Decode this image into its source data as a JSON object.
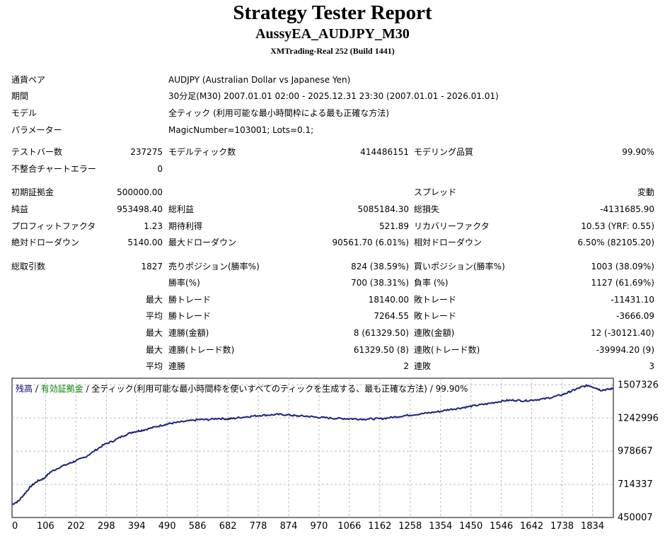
{
  "report": {
    "title": "Strategy Tester Report",
    "expert": "AussyEA_AUDJPY_M30",
    "server": "XMTrading-Real 252 (Build 1441)"
  },
  "info": [
    {
      "label": "通貨ペア",
      "value": "AUDJPY (Australian Dollar vs Japanese Yen)"
    },
    {
      "label": "期間",
      "value": "30分足(M30) 2007.01.01 02:00 - 2025.12.31 23:30 (2007.01.01 - 2026.01.01)"
    },
    {
      "label": "モデル",
      "value": "全ティック (利用可能な最小時間枠による最も正確な方法)"
    },
    {
      "label": "パラメーター",
      "value": "MagicNumber=103001; Lots=0.1;"
    }
  ],
  "stats": {
    "bars_label": "テストバー数",
    "bars": "237275",
    "ticks_label": "モデルティック数",
    "ticks": "414486151",
    "quality_label": "モデリング品質",
    "quality": "99.90%",
    "mismatch_label": "不整合チャートエラー",
    "mismatch": "0",
    "deposit_label": "初期証拠金",
    "deposit": "500000.00",
    "spread_label": "スプレッド",
    "spread": "変動",
    "net_label": "純益",
    "net": "953498.40",
    "gross_profit_label": "総利益",
    "gross_profit": "5085184.30",
    "gross_loss_label": "総損失",
    "gross_loss": "-4131685.90",
    "pf_label": "プロフィットファクタ",
    "pf": "1.23",
    "expected_label": "期待利得",
    "expected": "521.89",
    "recovery_label": "リカバリーファクタ",
    "recovery": "10.53 (YRF: 0.55)",
    "abs_dd_label": "絶対ドローダウン",
    "abs_dd": "5140.00",
    "max_dd_label": "最大ドローダウン",
    "max_dd": "90561.70 (6.01%)",
    "rel_dd_label": "相対ドローダウン",
    "rel_dd": "6.50% (82105.20)",
    "trades_label": "総取引数",
    "trades": "1827",
    "short_label": "売りポジション(勝率%)",
    "short": "824 (38.59%)",
    "long_label": "買いポジション(勝率%)",
    "long": "1003 (38.09%)",
    "win_pct_label": "勝率(%)",
    "win_pct": "700 (38.31%)",
    "loss_pct_label": "負率 (%)",
    "loss_pct": "1127 (61.69%)",
    "max_word": "最大",
    "avg_word": "平均",
    "largest_win_label": "勝トレード",
    "largest_win": "18140.00",
    "largest_loss_label": "敗トレード",
    "largest_loss": "-11431.10",
    "avg_win_label": "勝トレード",
    "avg_win": "7264.55",
    "avg_loss_label": "敗トレード",
    "avg_loss": "-3666.09",
    "max_consec_wins_money_label": "連勝(金額)",
    "max_consec_wins_money": "8 (61329.50)",
    "max_consec_losses_money_label": "連敗(金額)",
    "max_consec_losses_money": "12 (-30121.40)",
    "max_consec_wins_count_label": "連勝(トレード数)",
    "max_consec_wins_count": "61329.50 (8)",
    "max_consec_losses_count_label": "連敗(トレード数)",
    "max_consec_losses_count": "-39994.20 (9)",
    "avg_consec_wins_label": "連勝",
    "avg_consec_wins": "2",
    "avg_consec_losses_label": "連敗",
    "avg_consec_losses": "3"
  },
  "legend": {
    "balance": "残高",
    "sep1": " / ",
    "equity": "有効証拠金",
    "rest": " / 全ティック(利用可能な最小時間枠を使いすべてのティックを生成する、最も正確な方法) / 99.90%"
  },
  "colors": {
    "balance": "#000080",
    "equity": "#008000",
    "line": "#1a237e",
    "grid": "#bbbbbb"
  },
  "chart_data": {
    "type": "line",
    "title": "",
    "xlabel": "",
    "ylabel": "",
    "x_ticks": [
      "0",
      "106",
      "202",
      "298",
      "394",
      "490",
      "586",
      "682",
      "778",
      "874",
      "970",
      "1066",
      "1162",
      "1258",
      "1354",
      "1450",
      "1546",
      "1642",
      "1738",
      "1834"
    ],
    "y_ticks": [
      "1507326",
      "1242996",
      "978667",
      "714337",
      "450007"
    ],
    "xlim": [
      0,
      1900
    ],
    "ylim": [
      450007,
      1560000
    ],
    "series": [
      {
        "x": [
          0,
          20,
          40,
          60,
          80,
          100,
          120,
          150,
          180,
          200,
          230,
          260,
          290,
          320,
          350,
          380,
          400,
          420,
          450,
          480,
          500,
          530,
          560,
          590,
          620,
          650,
          680,
          700,
          730,
          760,
          790,
          820,
          850,
          880,
          900,
          930,
          960,
          990,
          1020,
          1050,
          1080,
          1110,
          1140,
          1170,
          1200,
          1230,
          1260,
          1290,
          1320,
          1350,
          1380,
          1410,
          1440,
          1470,
          1500,
          1530,
          1560,
          1590,
          1620,
          1650,
          1680,
          1710,
          1740,
          1760,
          1780,
          1800,
          1820,
          1840,
          1860,
          1880,
          1900
        ],
        "values": [
          555000,
          580000,
          640000,
          700000,
          740000,
          760000,
          810000,
          850000,
          880000,
          900000,
          930000,
          980000,
          1030000,
          1060000,
          1100000,
          1130000,
          1140000,
          1150000,
          1170000,
          1190000,
          1200000,
          1210000,
          1220000,
          1230000,
          1230000,
          1240000,
          1235000,
          1240000,
          1250000,
          1258000,
          1265000,
          1268000,
          1272000,
          1265000,
          1260000,
          1258000,
          1250000,
          1245000,
          1240000,
          1238000,
          1236000,
          1234000,
          1236000,
          1238000,
          1248000,
          1258000,
          1268000,
          1275000,
          1285000,
          1295000,
          1310000,
          1320000,
          1332000,
          1345000,
          1355000,
          1370000,
          1382000,
          1385000,
          1380000,
          1388000,
          1395000,
          1410000,
          1430000,
          1450000,
          1470000,
          1490000,
          1503000,
          1488000,
          1465000,
          1470000,
          1478000
        ]
      }
    ]
  }
}
